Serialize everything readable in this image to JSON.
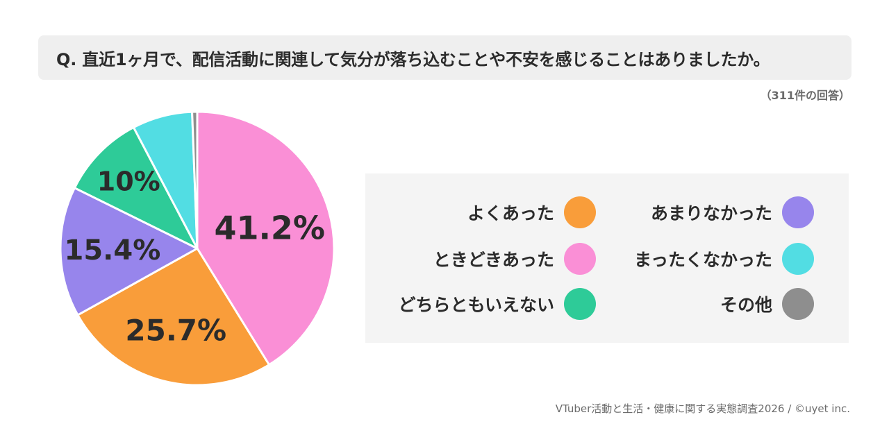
{
  "question": "Q. 直近1ヶ月で、配信活動に関連して気分が落ち込むことや不安を感じることはありましたか。",
  "response_count": "（311件の回答）",
  "footer": "VTuber活動と生活・健康に関する実態調査2026 / ©uyet inc.",
  "chart_data": {
    "type": "pie",
    "title": "Q. 直近1ヶ月で、配信活動に関連して気分が落ち込むことや不安を感じることはありましたか。",
    "total_responses": 311,
    "slices": [
      {
        "name": "ときどきあった",
        "value": 41.2,
        "color": "#fa8fd6",
        "label": "41.2%"
      },
      {
        "name": "よくあった",
        "value": 25.7,
        "color": "#f99d3a",
        "label": "25.7%"
      },
      {
        "name": "あまりなかった",
        "value": 15.4,
        "color": "#9785ec",
        "label": "15.4%"
      },
      {
        "name": "どちらともいえない",
        "value": 10.0,
        "color": "#2ecb98",
        "label": "10%"
      },
      {
        "name": "まったくなかった",
        "value": 7.1,
        "color": "#52dde3",
        "label": ""
      },
      {
        "name": "その他",
        "value": 0.6,
        "color": "#8e8e8e",
        "label": ""
      }
    ],
    "legend": [
      {
        "label": "よくあった",
        "color": "#f99d3a"
      },
      {
        "label": "あまりなかった",
        "color": "#9785ec"
      },
      {
        "label": "ときどきあった",
        "color": "#fa8fd6"
      },
      {
        "label": "まったくなかった",
        "color": "#52dde3"
      },
      {
        "label": "どちらともいえない",
        "color": "#2ecb98"
      },
      {
        "label": "その他",
        "color": "#8e8e8e"
      }
    ],
    "legend_placement": "right"
  }
}
